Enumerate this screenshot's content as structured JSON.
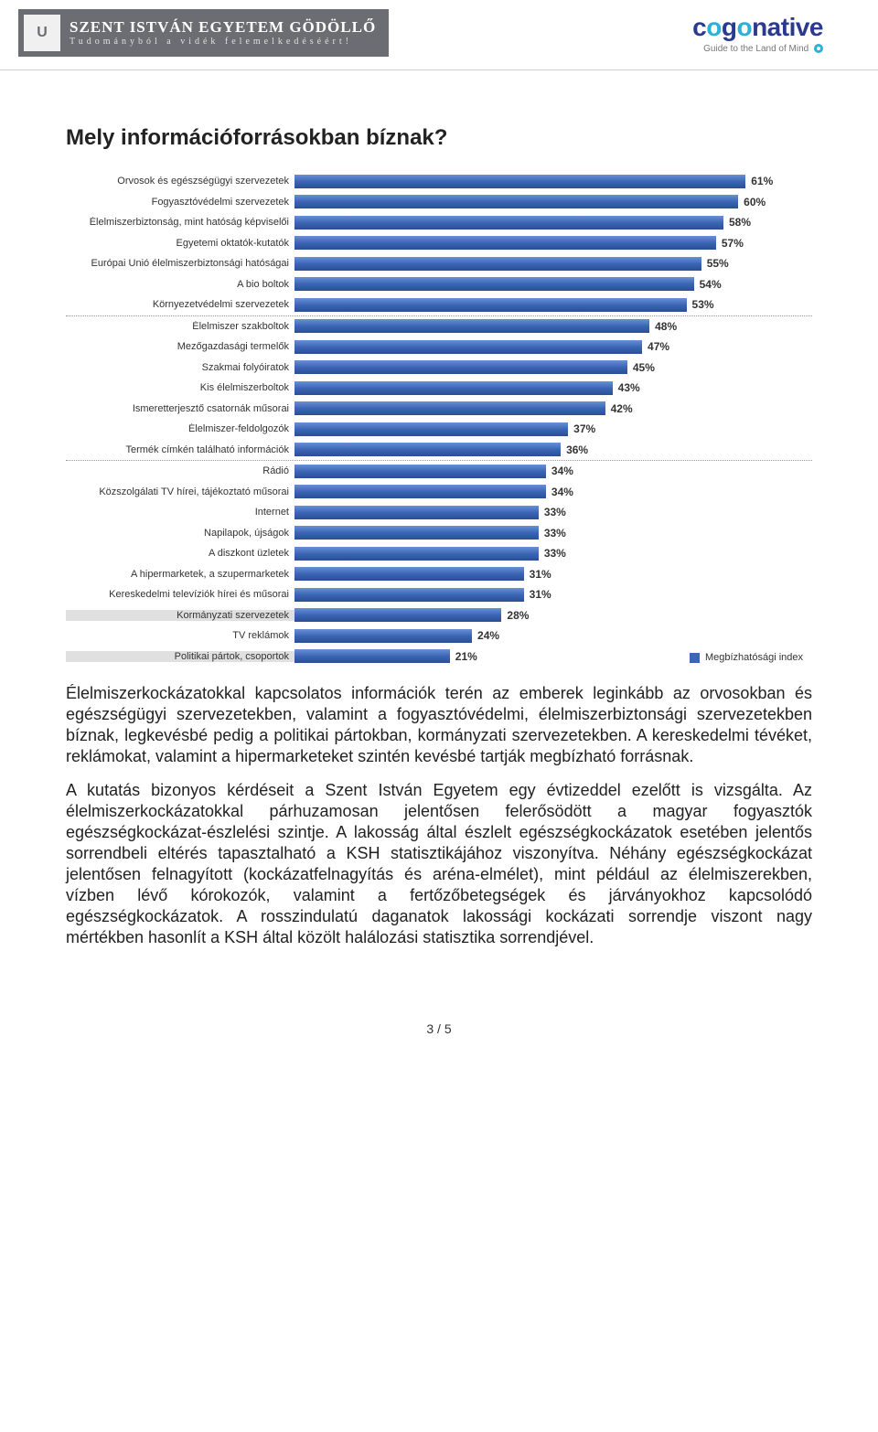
{
  "header": {
    "uni_crest_initial": "U",
    "uni_title": "SZENT ISTVÁN EGYETEM GÖDÖLLŐ",
    "uni_sub": "Tudományból a vidék felemelkedéséért!",
    "brand_prefix": "c",
    "brand_o": "o",
    "brand_mid": "g",
    "brand_rest": "native",
    "brand_tag": "Guide to the Land of Mind"
  },
  "chart": {
    "title": "Mely információforrásokban bíznak?",
    "type": "bar",
    "bar_color": "#3b66b5",
    "legend_label": "Megbízhatósági index",
    "max_pct": 70,
    "dividers_after": [
      6,
      13
    ],
    "shaded_labels": [
      21,
      23
    ],
    "items": [
      {
        "label": "Orvosok és egészségügyi szervezetek",
        "value": 61
      },
      {
        "label": "Fogyasztóvédelmi szervezetek",
        "value": 60
      },
      {
        "label": "Élelmiszerbiztonság, mint hatóság képviselői",
        "value": 58
      },
      {
        "label": "Egyetemi oktatók-kutatók",
        "value": 57
      },
      {
        "label": "Európai Unió élelmiszerbiztonsági hatóságai",
        "value": 55
      },
      {
        "label": "A bio boltok",
        "value": 54
      },
      {
        "label": "Környezetvédelmi szervezetek",
        "value": 53
      },
      {
        "label": "Élelmiszer szakboltok",
        "value": 48
      },
      {
        "label": "Mezőgazdasági termelők",
        "value": 47
      },
      {
        "label": "Szakmai folyóiratok",
        "value": 45
      },
      {
        "label": "Kis élelmiszerboltok",
        "value": 43
      },
      {
        "label": "Ismeretterjesztő csatornák műsorai",
        "value": 42
      },
      {
        "label": "Élelmiszer-feldolgozók",
        "value": 37
      },
      {
        "label": "Termék címkén található információk",
        "value": 36
      },
      {
        "label": "Rádió",
        "value": 34
      },
      {
        "label": "Közszolgálati TV hírei, tájékoztató műsorai",
        "value": 34
      },
      {
        "label": "Internet",
        "value": 33
      },
      {
        "label": "Napilapok, újságok",
        "value": 33
      },
      {
        "label": "A diszkont üzletek",
        "value": 33
      },
      {
        "label": "A hipermarketek, a szupermarketek",
        "value": 31
      },
      {
        "label": "Kereskedelmi televíziók hírei és műsorai",
        "value": 31
      },
      {
        "label": "Kormányzati szervezetek",
        "value": 28
      },
      {
        "label": "TV reklámok",
        "value": 24
      },
      {
        "label": "Politikai pártok, csoportok",
        "value": 21
      }
    ]
  },
  "body": {
    "p1": "Élelmiszerkockázatokkal kapcsolatos információk terén az emberek leginkább az orvosokban és egészségügyi szervezetekben, valamint a fogyasztóvédelmi, élelmiszerbiztonsági szervezetekben bíznak, legkevésbé pedig a politikai pártokban, kormányzati szervezetekben. A kereskedelmi tévéket, reklámokat, valamint a hipermarketeket szintén kevésbé tartják megbízható forrásnak.",
    "p2": "A kutatás bizonyos kérdéseit a Szent István Egyetem egy évtizeddel ezelőtt is vizsgálta. Az élelmiszerkockázatokkal párhuzamosan jelentősen felerősödött a magyar fogyasztók egészségkockázat-észlelési szintje. A lakosság által észlelt egészségkockázatok esetében jelentős sorrendbeli eltérés tapasztalható a KSH statisztikájához viszonyítva. Néhány egészségkockázat jelentősen felnagyított (kockázatfelnagyítás és aréna-elmélet), mint például az élelmiszerekben, vízben lévő kórokozók, valamint a fertőzőbetegségek és járványokhoz kapcsolódó egészségkockázatok. A rosszindulatú daganatok lakossági kockázati sorrendje viszont nagy mértékben hasonlít a KSH által közölt halálozási statisztika sorrendjével."
  },
  "page": {
    "number": "3 / 5"
  }
}
